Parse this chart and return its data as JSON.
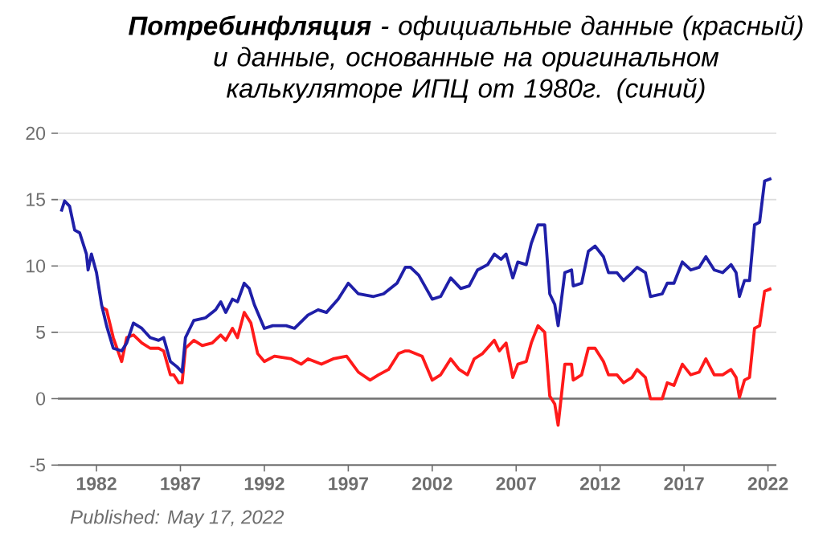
{
  "chart_data": {
    "type": "line",
    "title": "**Потребинфляция** - официальные данные (красный) и данные, основанные на оригинальном калькуляторе ИПЦ от 1980г. (синий)",
    "xlim": [
      1979.7,
      2022.5
    ],
    "ylim": [
      -5,
      20
    ],
    "xticks": [
      1982,
      1987,
      1992,
      1997,
      2002,
      2007,
      2012,
      2017,
      2022
    ],
    "yticks": [
      -5,
      0,
      5,
      10,
      15,
      20
    ],
    "grid": "y",
    "line_style": "solid",
    "ref_lines": [
      {
        "axis": "y",
        "value": 0,
        "color": "#707070"
      }
    ],
    "annotations": [
      "Published: May 17, 2022"
    ],
    "series": [
      {
        "color": "#ff1a1a",
        "x": [
          1982.3,
          1982.6,
          1983.0,
          1983.5,
          1983.8,
          1984.2,
          1984.7,
          1985.2,
          1985.7,
          1986.0,
          1986.4,
          1986.6,
          1986.9,
          1987.1,
          1987.3,
          1987.8,
          1988.3,
          1988.9,
          1989.4,
          1989.7,
          1990.1,
          1990.4,
          1990.8,
          1991.2,
          1991.6,
          1992.0,
          1992.6,
          1993.6,
          1994.2,
          1994.6,
          1995.4,
          1996.1,
          1996.9,
          1997.6,
          1998.3,
          1998.8,
          1999.4,
          2000.0,
          2000.4,
          2000.6,
          2001.4,
          2002.0,
          2002.5,
          2003.1,
          2003.6,
          2004.1,
          2004.5,
          2005.0,
          2005.7,
          2006.0,
          2006.4,
          2006.8,
          2007.1,
          2007.6,
          2007.9,
          2008.3,
          2008.7,
          2009.0,
          2009.3,
          2009.5,
          2009.9,
          2010.3,
          2010.4,
          2010.9,
          2011.3,
          2011.7,
          2012.2,
          2012.5,
          2013.0,
          2013.4,
          2013.9,
          2014.2,
          2014.7,
          2015.0,
          2015.7,
          2016.0,
          2016.4,
          2016.9,
          2017.4,
          2017.9,
          2018.3,
          2018.8,
          2019.3,
          2019.8,
          2020.1,
          2020.3,
          2020.6,
          2020.9,
          2021.2,
          2021.5,
          2021.8,
          2022.2
        ],
        "values": [
          6.9,
          6.7,
          4.6,
          2.8,
          4.6,
          4.8,
          4.2,
          3.8,
          3.8,
          3.6,
          1.8,
          1.8,
          1.2,
          1.2,
          3.8,
          4.4,
          4.0,
          4.2,
          4.8,
          4.4,
          5.3,
          4.6,
          6.5,
          5.7,
          3.4,
          2.8,
          3.2,
          3.0,
          2.6,
          3.0,
          2.6,
          3.0,
          3.2,
          2.0,
          1.4,
          1.8,
          2.2,
          3.4,
          3.6,
          3.6,
          3.2,
          1.4,
          1.8,
          3.0,
          2.2,
          1.8,
          3.0,
          3.4,
          4.4,
          3.6,
          4.2,
          1.6,
          2.6,
          2.8,
          4.2,
          5.5,
          5.0,
          0.2,
          -0.4,
          -2.0,
          2.6,
          2.6,
          1.4,
          1.8,
          3.8,
          3.8,
          2.8,
          1.8,
          1.8,
          1.2,
          1.6,
          2.2,
          1.6,
          0.0,
          0.0,
          1.2,
          1.0,
          2.6,
          1.8,
          2.0,
          3.0,
          1.8,
          1.8,
          2.2,
          1.6,
          0.1,
          1.4,
          1.6,
          5.3,
          5.5,
          8.1,
          8.3
        ]
      },
      {
        "color": "#1f1fa8",
        "x": [
          1979.9,
          1980.1,
          1980.4,
          1980.7,
          1981.0,
          1981.4,
          1981.5,
          1981.7,
          1982.0,
          1982.3,
          1982.6,
          1983.0,
          1983.5,
          1983.8,
          1984.2,
          1984.7,
          1985.2,
          1985.7,
          1986.0,
          1986.4,
          1986.8,
          1987.1,
          1987.3,
          1987.8,
          1988.5,
          1989.1,
          1989.4,
          1989.7,
          1990.1,
          1990.4,
          1990.8,
          1991.1,
          1991.4,
          1992.0,
          1992.5,
          1993.3,
          1993.8,
          1994.6,
          1995.2,
          1995.7,
          1996.4,
          1997.0,
          1997.6,
          1998.5,
          1999.1,
          1999.9,
          2000.4,
          2000.7,
          2001.2,
          2002.0,
          2002.5,
          2003.1,
          2003.7,
          2004.2,
          2004.7,
          2005.3,
          2005.7,
          2006.1,
          2006.4,
          2006.8,
          2007.1,
          2007.6,
          2007.9,
          2008.3,
          2008.7,
          2009.0,
          2009.3,
          2009.5,
          2009.9,
          2010.3,
          2010.4,
          2010.9,
          2011.3,
          2011.7,
          2012.2,
          2012.5,
          2013.0,
          2013.4,
          2013.9,
          2014.2,
          2014.7,
          2015.0,
          2015.7,
          2016.0,
          2016.4,
          2016.9,
          2017.4,
          2017.9,
          2018.3,
          2018.8,
          2019.3,
          2019.8,
          2020.1,
          2020.3,
          2020.6,
          2020.9,
          2021.2,
          2021.5,
          2021.8,
          2022.2
        ],
        "values": [
          14.1,
          14.9,
          14.5,
          12.7,
          12.5,
          10.9,
          9.7,
          10.9,
          9.5,
          7.1,
          5.5,
          3.8,
          3.6,
          4.2,
          5.7,
          5.3,
          4.6,
          4.4,
          4.6,
          2.8,
          2.4,
          2.0,
          4.6,
          5.9,
          6.1,
          6.7,
          7.3,
          6.5,
          7.5,
          7.3,
          8.7,
          8.3,
          7.1,
          5.3,
          5.5,
          5.5,
          5.3,
          6.3,
          6.7,
          6.5,
          7.5,
          8.7,
          7.9,
          7.7,
          7.9,
          8.7,
          9.9,
          9.9,
          9.3,
          7.5,
          7.7,
          9.1,
          8.3,
          8.5,
          9.7,
          10.1,
          10.9,
          10.5,
          10.9,
          9.1,
          10.3,
          10.1,
          11.7,
          13.1,
          13.1,
          7.9,
          7.1,
          5.5,
          9.5,
          9.7,
          8.5,
          8.7,
          11.1,
          11.5,
          10.7,
          9.5,
          9.5,
          8.9,
          9.5,
          9.9,
          9.5,
          7.7,
          7.9,
          8.7,
          8.7,
          10.3,
          9.7,
          9.9,
          10.7,
          9.7,
          9.5,
          10.1,
          9.5,
          7.7,
          8.9,
          8.9,
          13.1,
          13.3,
          16.4,
          16.6
        ]
      }
    ]
  }
}
